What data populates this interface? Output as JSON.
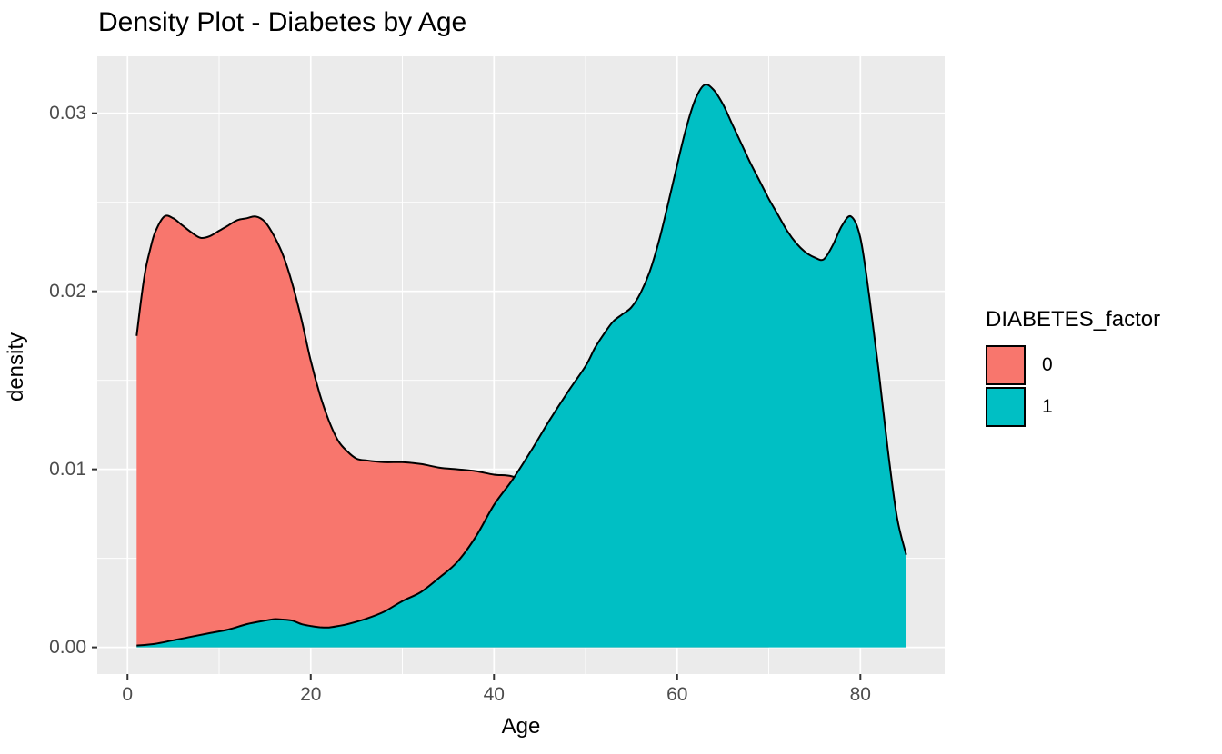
{
  "figure": {
    "title": "Density Plot - Diabetes by Age",
    "x_label": "Age",
    "y_label": "density"
  },
  "legend": {
    "title": "DIABETES_factor",
    "items": [
      {
        "label": "0",
        "color": "#F8766D"
      },
      {
        "label": "1",
        "color": "#00BFC4"
      }
    ]
  },
  "theme": {
    "panel_background": "#EBEBEB",
    "grid_color": "#FFFFFF",
    "tick_text_color": "#4D4D4D",
    "tick_mark_color": "#333333",
    "outline_color": "#000000"
  },
  "chart_data": {
    "type": "area",
    "subtype": "density",
    "title": "Density Plot - Diabetes by Age",
    "xlabel": "Age",
    "ylabel": "density",
    "legend_title": "DIABETES_factor",
    "legend_position": "right",
    "grid": true,
    "x_domain": [
      -3.3,
      89.2
    ],
    "y_domain": [
      -0.0015,
      0.0332
    ],
    "x_ticks": [
      {
        "label": "0",
        "value": 0
      },
      {
        "label": "20",
        "value": 20
      },
      {
        "label": "40",
        "value": 40
      },
      {
        "label": "60",
        "value": 60
      },
      {
        "label": "80",
        "value": 80
      }
    ],
    "y_ticks": [
      {
        "label": "0.00",
        "value": 0
      },
      {
        "label": "0.01",
        "value": 0.01
      },
      {
        "label": "0.02",
        "value": 0.02
      },
      {
        "label": "0.03",
        "value": 0.03
      }
    ],
    "x_minor": [
      10,
      30,
      50,
      70
    ],
    "y_minor": [
      0.005,
      0.015,
      0.025
    ],
    "series": [
      {
        "name": "0",
        "fill": "#F8766D",
        "points": [
          [
            1,
            0.0175
          ],
          [
            1.5,
            0.0196
          ],
          [
            2,
            0.0213
          ],
          [
            2.5,
            0.0224
          ],
          [
            3,
            0.0233
          ],
          [
            4,
            0.0242
          ],
          [
            5,
            0.0241
          ],
          [
            6,
            0.0237
          ],
          [
            7,
            0.0233
          ],
          [
            8,
            0.023
          ],
          [
            9,
            0.0231
          ],
          [
            10,
            0.0234
          ],
          [
            11,
            0.0237
          ],
          [
            12,
            0.024
          ],
          [
            13,
            0.0241
          ],
          [
            14,
            0.0242
          ],
          [
            15,
            0.0239
          ],
          [
            16,
            0.0231
          ],
          [
            17,
            0.022
          ],
          [
            18,
            0.0204
          ],
          [
            19,
            0.0184
          ],
          [
            20,
            0.0161
          ],
          [
            21,
            0.0142
          ],
          [
            22,
            0.0127
          ],
          [
            23,
            0.0116
          ],
          [
            24,
            0.011
          ],
          [
            25,
            0.0106
          ],
          [
            26,
            0.0105
          ],
          [
            28,
            0.0104
          ],
          [
            30,
            0.0104
          ],
          [
            32,
            0.0103
          ],
          [
            34,
            0.0101
          ],
          [
            36,
            0.01
          ],
          [
            38,
            0.0099
          ],
          [
            40,
            0.0097
          ],
          [
            42,
            0.0096
          ],
          [
            44,
            0.0091
          ],
          [
            46,
            0.0083
          ],
          [
            48,
            0.0072
          ],
          [
            50,
            0.0058
          ],
          [
            52,
            0.0045
          ],
          [
            54,
            0.0033
          ],
          [
            56,
            0.0023
          ],
          [
            58,
            0.0015
          ],
          [
            60,
            0.0009
          ],
          [
            62,
            0.0006
          ],
          [
            64,
            0.0004
          ],
          [
            66,
            0.0002
          ],
          [
            68,
            0.0001
          ],
          [
            70,
            0.0001
          ]
        ]
      },
      {
        "name": "1",
        "fill": "#00BFC4",
        "points": [
          [
            1,
            0.0001
          ],
          [
            3,
            0.0002
          ],
          [
            5,
            0.0004
          ],
          [
            7,
            0.0006
          ],
          [
            9,
            0.0008
          ],
          [
            11,
            0.001
          ],
          [
            13,
            0.0013
          ],
          [
            15,
            0.0015
          ],
          [
            16,
            0.00158
          ],
          [
            17,
            0.00156
          ],
          [
            18,
            0.0015
          ],
          [
            19,
            0.0013
          ],
          [
            20,
            0.0012
          ],
          [
            21,
            0.00113
          ],
          [
            22,
            0.00112
          ],
          [
            23,
            0.0012
          ],
          [
            24,
            0.0013
          ],
          [
            26,
            0.0016
          ],
          [
            28,
            0.002
          ],
          [
            30,
            0.0026
          ],
          [
            32,
            0.0031
          ],
          [
            34,
            0.0039
          ],
          [
            36,
            0.0048
          ],
          [
            38,
            0.0062
          ],
          [
            40,
            0.008
          ],
          [
            42,
            0.0094
          ],
          [
            44,
            0.011
          ],
          [
            46,
            0.0127
          ],
          [
            48,
            0.0143
          ],
          [
            50,
            0.0158
          ],
          [
            51,
            0.0168
          ],
          [
            52,
            0.0176
          ],
          [
            53,
            0.0183
          ],
          [
            54,
            0.0187
          ],
          [
            55,
            0.0191
          ],
          [
            56,
            0.0199
          ],
          [
            57,
            0.0211
          ],
          [
            58,
            0.0228
          ],
          [
            59,
            0.0249
          ],
          [
            60,
            0.0271
          ],
          [
            61,
            0.0292
          ],
          [
            62,
            0.0308
          ],
          [
            63,
            0.0316
          ],
          [
            64,
            0.0313
          ],
          [
            65,
            0.0305
          ],
          [
            66,
            0.0294
          ],
          [
            67,
            0.0283
          ],
          [
            68,
            0.0272
          ],
          [
            69,
            0.0262
          ],
          [
            70,
            0.0252
          ],
          [
            71,
            0.0243
          ],
          [
            72,
            0.0234
          ],
          [
            73,
            0.0227
          ],
          [
            74,
            0.0222
          ],
          [
            75,
            0.0219
          ],
          [
            76,
            0.0218
          ],
          [
            77,
            0.0226
          ],
          [
            78,
            0.0237
          ],
          [
            79,
            0.0242
          ],
          [
            80,
            0.023
          ],
          [
            81,
            0.0196
          ],
          [
            82,
            0.0155
          ],
          [
            83,
            0.0111
          ],
          [
            84,
            0.0073
          ],
          [
            85,
            0.0052
          ]
        ]
      }
    ]
  }
}
